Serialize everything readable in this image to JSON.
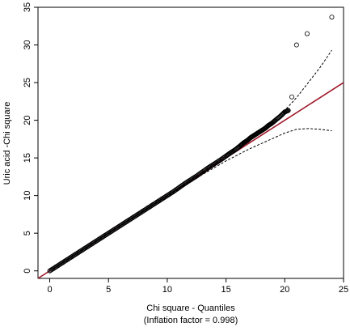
{
  "chart_data": {
    "type": "scatter",
    "title": "",
    "xlabel": "Chi square - Quantiles",
    "xlabel_sub": "(Inflation factor = 0.998)",
    "ylabel": "Uric acid -Chi square",
    "xlim": [
      -1,
      25
    ],
    "ylim": [
      -1,
      35
    ],
    "xticks": [
      "0",
      "5",
      "10",
      "15",
      "20",
      "25"
    ],
    "yticks": [
      "0",
      "5",
      "10",
      "15",
      "20",
      "25",
      "30",
      "35"
    ],
    "grid": false,
    "legend": "none",
    "series": [
      {
        "kind": "points",
        "marker": "open-circle",
        "color": "#000000",
        "x": [
          0.0,
          0.5,
          1.0,
          1.5,
          2.0,
          2.5,
          3.0,
          3.5,
          4.0,
          4.5,
          5.0,
          5.5,
          6.0,
          6.5,
          7.0,
          7.5,
          8.0,
          8.5,
          9.0,
          9.5,
          10.0,
          10.5,
          11.0,
          11.5,
          12.0,
          12.5,
          13.0,
          13.5,
          14.0,
          14.5,
          15.0,
          15.4,
          15.8,
          16.2,
          16.5,
          16.8,
          17.1,
          17.4,
          17.7,
          18.0,
          18.3,
          18.6,
          18.9,
          19.2,
          19.6,
          20.0,
          20.3,
          20.6,
          21.0,
          21.9,
          24.0
        ],
        "y": [
          0.0,
          0.5,
          1.0,
          1.5,
          2.0,
          2.5,
          3.0,
          3.5,
          4.0,
          4.5,
          5.0,
          5.5,
          6.0,
          6.5,
          7.0,
          7.5,
          8.0,
          8.5,
          9.0,
          9.5,
          10.0,
          10.5,
          11.05,
          11.6,
          12.1,
          12.6,
          13.15,
          13.7,
          14.2,
          14.7,
          15.25,
          15.7,
          16.1,
          16.6,
          17.0,
          17.3,
          17.7,
          18.0,
          18.3,
          18.6,
          18.9,
          19.3,
          19.6,
          20.0,
          20.5,
          21.1,
          21.3,
          23.1,
          30.0,
          31.5,
          33.7
        ]
      },
      {
        "kind": "line",
        "style": "solid",
        "color": "#a0192a",
        "x": [
          -1,
          25
        ],
        "y": [
          -1,
          25
        ]
      },
      {
        "kind": "line",
        "style": "dashed",
        "color": "#000000",
        "x": [
          0,
          5,
          10,
          13,
          15,
          17,
          19,
          20,
          21,
          22,
          23,
          24
        ],
        "y": [
          0,
          5,
          10,
          13.1,
          15.3,
          17.6,
          20.0,
          21.3,
          23.0,
          25.0,
          27.0,
          29.3
        ]
      },
      {
        "kind": "line",
        "style": "dashed",
        "color": "#000000",
        "x": [
          0,
          5,
          10,
          13,
          15,
          17,
          19,
          20,
          21,
          22,
          23,
          24
        ],
        "y": [
          0,
          5,
          9.9,
          12.8,
          14.6,
          16.2,
          17.6,
          18.3,
          18.8,
          18.9,
          18.8,
          18.6
        ]
      }
    ]
  }
}
